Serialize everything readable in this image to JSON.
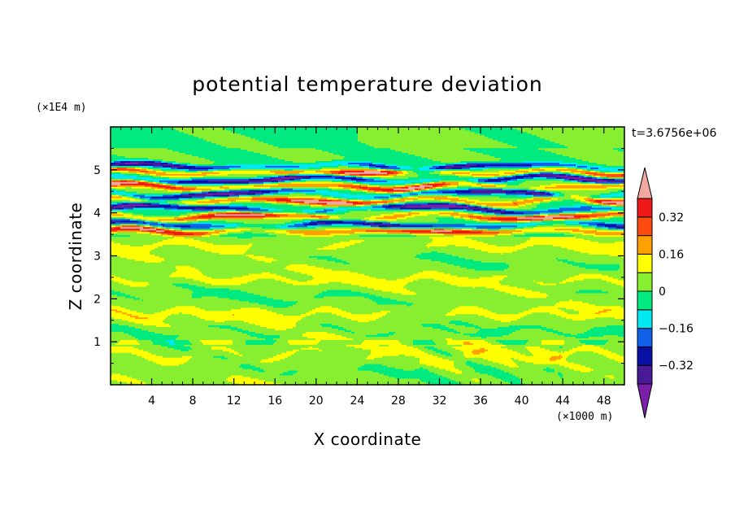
{
  "chart_data": {
    "type": "heatmap",
    "title": "potential temperature deviation",
    "xlabel": "X coordinate",
    "ylabel": "Z coordinate",
    "x_unit": "(×1000 m)",
    "y_unit": "(×1E4 m)",
    "time_label": "t=3.6756e+06",
    "xlim": [
      0,
      50
    ],
    "ylim": [
      0,
      6
    ],
    "x_ticks": [
      4,
      8,
      12,
      16,
      20,
      24,
      28,
      32,
      36,
      40,
      44,
      48
    ],
    "y_ticks": [
      1,
      2,
      3,
      4,
      5
    ],
    "colorbar": {
      "levels": [
        -0.4,
        -0.32,
        -0.24,
        -0.16,
        -0.08,
        0,
        0.08,
        0.16,
        0.24,
        0.32,
        0.4
      ],
      "colors": [
        "#7a1fa8",
        "#4a1a96",
        "#0a10a6",
        "#1060e8",
        "#00e8f0",
        "#00ea80",
        "#88ee30",
        "#ffff00",
        "#ffa000",
        "#ff4a10",
        "#ee1818",
        "#f0a8a0"
      ],
      "tick_labels": [
        "0.32",
        "0.16",
        "0",
        "-0.16",
        "-0.32"
      ],
      "tick_values": [
        0.32,
        0.16,
        0,
        -0.16,
        -0.32
      ],
      "extend": "both"
    },
    "bands": [
      {
        "z": 5.08,
        "amp": 0.06,
        "wave": 18,
        "phase": 0.3,
        "value": -0.36
      },
      {
        "z": 4.95,
        "amp": 0.05,
        "wave": 14,
        "phase": 1.2,
        "value": 0.4
      },
      {
        "z": 4.78,
        "amp": 0.07,
        "wave": 22,
        "phase": 2.1,
        "value": -0.4
      },
      {
        "z": 4.62,
        "amp": 0.06,
        "wave": 16,
        "phase": 0.7,
        "value": 0.4
      },
      {
        "z": 4.45,
        "amp": 0.08,
        "wave": 20,
        "phase": 2.8,
        "value": -0.36
      },
      {
        "z": 4.28,
        "amp": 0.07,
        "wave": 15,
        "phase": 1.6,
        "value": 0.4
      },
      {
        "z": 4.1,
        "amp": 0.08,
        "wave": 24,
        "phase": 0.2,
        "value": -0.4
      },
      {
        "z": 3.92,
        "amp": 0.07,
        "wave": 17,
        "phase": 2.4,
        "value": 0.4
      },
      {
        "z": 3.72,
        "amp": 0.06,
        "wave": 21,
        "phase": 1.0,
        "value": -0.36
      },
      {
        "z": 3.58,
        "amp": 0.04,
        "wave": 13,
        "phase": 0.5,
        "value": 0.36
      }
    ],
    "lower_pattern": [
      {
        "z": 3.25,
        "amp": 0.1,
        "wave": 9,
        "value": 0.05
      },
      {
        "z": 2.85,
        "amp": 0.12,
        "wave": 11,
        "value": -0.02
      },
      {
        "z": 2.45,
        "amp": 0.1,
        "wave": 8,
        "value": 0.05
      },
      {
        "z": 2.05,
        "amp": 0.13,
        "wave": 12,
        "value": -0.03
      },
      {
        "z": 1.65,
        "amp": 0.1,
        "wave": 7,
        "value": 0.06
      },
      {
        "z": 1.25,
        "amp": 0.12,
        "wave": 10,
        "value": -0.04
      },
      {
        "z": 0.7,
        "amp": 0.15,
        "wave": 9,
        "value": 0.05
      },
      {
        "z": 0.3,
        "amp": 0.1,
        "wave": 6,
        "value": -0.02
      }
    ]
  }
}
